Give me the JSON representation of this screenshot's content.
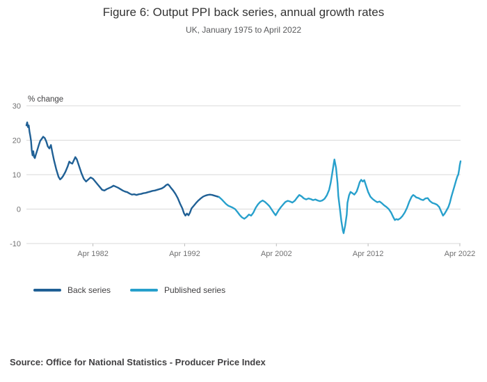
{
  "chart_data": {
    "type": "line",
    "title": "Figure 6: Output PPI back series, annual growth rates",
    "subtitle": "UK, January 1975 to April 2022",
    "ylabel": "% change",
    "xlim": [
      1975.0,
      2022.33
    ],
    "ylim": [
      -10,
      30
    ],
    "yticks": [
      30,
      20,
      10,
      0,
      -10
    ],
    "xticks": [
      {
        "label": "Apr 1982",
        "x": 1982.25
      },
      {
        "label": "Apr 1992",
        "x": 1992.25
      },
      {
        "label": "Apr 2002",
        "x": 2002.25
      },
      {
        "label": "Apr 2012",
        "x": 2012.25
      },
      {
        "label": "Apr 2022",
        "x": 2022.25
      }
    ],
    "grid": "horizontal",
    "legend_position": "bottom",
    "grid_color": "#d9d9d9",
    "axis_text_color": "#707071",
    "series": [
      {
        "name": "Back series",
        "color": "#206095",
        "points": [
          [
            1975.0,
            24.3
          ],
          [
            1975.08,
            25.2
          ],
          [
            1975.17,
            23.8
          ],
          [
            1975.25,
            24.3
          ],
          [
            1975.33,
            22.5
          ],
          [
            1975.42,
            21.3
          ],
          [
            1975.5,
            19.8
          ],
          [
            1975.58,
            17.2
          ],
          [
            1975.67,
            15.6
          ],
          [
            1975.75,
            16.8
          ],
          [
            1975.83,
            15.2
          ],
          [
            1975.92,
            14.8
          ],
          [
            1976.0,
            15.6
          ],
          [
            1976.17,
            17.0
          ],
          [
            1976.33,
            18.4
          ],
          [
            1976.5,
            19.8
          ],
          [
            1976.67,
            20.4
          ],
          [
            1976.83,
            21.0
          ],
          [
            1977.0,
            20.6
          ],
          [
            1977.17,
            19.6
          ],
          [
            1977.33,
            18.2
          ],
          [
            1977.5,
            17.6
          ],
          [
            1977.67,
            18.6
          ],
          [
            1977.83,
            16.4
          ],
          [
            1978.0,
            14.2
          ],
          [
            1978.25,
            11.6
          ],
          [
            1978.5,
            9.4
          ],
          [
            1978.67,
            8.6
          ],
          [
            1978.83,
            9.0
          ],
          [
            1979.0,
            9.6
          ],
          [
            1979.25,
            10.8
          ],
          [
            1979.5,
            12.4
          ],
          [
            1979.67,
            13.8
          ],
          [
            1979.83,
            13.4
          ],
          [
            1980.0,
            13.2
          ],
          [
            1980.17,
            14.2
          ],
          [
            1980.33,
            15.1
          ],
          [
            1980.5,
            14.4
          ],
          [
            1980.75,
            12.4
          ],
          [
            1981.0,
            10.4
          ],
          [
            1981.25,
            8.8
          ],
          [
            1981.5,
            8.0
          ],
          [
            1981.75,
            8.6
          ],
          [
            1982.0,
            9.2
          ],
          [
            1982.25,
            8.8
          ],
          [
            1982.5,
            8.0
          ],
          [
            1982.75,
            7.2
          ],
          [
            1983.0,
            6.4
          ],
          [
            1983.25,
            5.6
          ],
          [
            1983.5,
            5.4
          ],
          [
            1983.75,
            5.8
          ],
          [
            1984.0,
            6.1
          ],
          [
            1984.25,
            6.4
          ],
          [
            1984.5,
            6.8
          ],
          [
            1984.75,
            6.5
          ],
          [
            1985.0,
            6.2
          ],
          [
            1985.25,
            5.8
          ],
          [
            1985.5,
            5.4
          ],
          [
            1985.75,
            5.1
          ],
          [
            1986.0,
            4.9
          ],
          [
            1986.25,
            4.5
          ],
          [
            1986.5,
            4.2
          ],
          [
            1986.75,
            4.3
          ],
          [
            1987.0,
            4.1
          ],
          [
            1987.25,
            4.3
          ],
          [
            1987.5,
            4.4
          ],
          [
            1987.75,
            4.6
          ],
          [
            1988.0,
            4.7
          ],
          [
            1988.25,
            4.9
          ],
          [
            1988.5,
            5.1
          ],
          [
            1988.75,
            5.3
          ],
          [
            1989.0,
            5.4
          ],
          [
            1989.25,
            5.6
          ],
          [
            1989.5,
            5.8
          ],
          [
            1989.75,
            6.0
          ],
          [
            1990.0,
            6.4
          ],
          [
            1990.25,
            7.0
          ],
          [
            1990.42,
            7.2
          ],
          [
            1990.58,
            6.8
          ],
          [
            1990.75,
            6.2
          ],
          [
            1991.0,
            5.4
          ],
          [
            1991.25,
            4.4
          ],
          [
            1991.5,
            3.2
          ],
          [
            1991.75,
            1.6
          ],
          [
            1992.0,
            0.2
          ],
          [
            1992.17,
            -1.2
          ],
          [
            1992.33,
            -1.9
          ],
          [
            1992.5,
            -1.3
          ],
          [
            1992.67,
            -1.8
          ],
          [
            1992.83,
            -1.0
          ],
          [
            1993.0,
            0.2
          ],
          [
            1993.25,
            1.0
          ],
          [
            1993.5,
            1.8
          ],
          [
            1993.75,
            2.5
          ],
          [
            1994.0,
            3.1
          ],
          [
            1994.25,
            3.6
          ],
          [
            1994.5,
            3.9
          ],
          [
            1994.75,
            4.1
          ],
          [
            1995.0,
            4.2
          ],
          [
            1995.25,
            4.1
          ],
          [
            1995.5,
            3.9
          ],
          [
            1995.75,
            3.7
          ],
          [
            1996.0,
            3.5
          ]
        ]
      },
      {
        "name": "Published series",
        "color": "#27a0cc",
        "points": [
          [
            1996.0,
            3.5
          ],
          [
            1996.25,
            2.9
          ],
          [
            1996.5,
            2.2
          ],
          [
            1996.75,
            1.5
          ],
          [
            1997.0,
            1.0
          ],
          [
            1997.25,
            0.7
          ],
          [
            1997.5,
            0.4
          ],
          [
            1997.75,
            0.0
          ],
          [
            1998.0,
            -0.8
          ],
          [
            1998.25,
            -1.7
          ],
          [
            1998.5,
            -2.4
          ],
          [
            1998.75,
            -2.8
          ],
          [
            1999.0,
            -2.3
          ],
          [
            1999.25,
            -1.6
          ],
          [
            1999.5,
            -1.9
          ],
          [
            1999.75,
            -1.0
          ],
          [
            2000.0,
            0.4
          ],
          [
            2000.25,
            1.4
          ],
          [
            2000.5,
            2.1
          ],
          [
            2000.75,
            2.5
          ],
          [
            2001.0,
            2.1
          ],
          [
            2001.25,
            1.5
          ],
          [
            2001.5,
            0.8
          ],
          [
            2001.75,
            -0.2
          ],
          [
            2002.0,
            -1.2
          ],
          [
            2002.17,
            -1.8
          ],
          [
            2002.33,
            -1.1
          ],
          [
            2002.5,
            -0.3
          ],
          [
            2002.75,
            0.6
          ],
          [
            2003.0,
            1.4
          ],
          [
            2003.25,
            2.1
          ],
          [
            2003.5,
            2.4
          ],
          [
            2003.75,
            2.2
          ],
          [
            2004.0,
            1.9
          ],
          [
            2004.25,
            2.4
          ],
          [
            2004.5,
            3.3
          ],
          [
            2004.75,
            4.1
          ],
          [
            2005.0,
            3.7
          ],
          [
            2005.25,
            3.1
          ],
          [
            2005.5,
            2.8
          ],
          [
            2005.75,
            3.1
          ],
          [
            2006.0,
            2.9
          ],
          [
            2006.25,
            2.6
          ],
          [
            2006.5,
            2.8
          ],
          [
            2006.75,
            2.5
          ],
          [
            2007.0,
            2.3
          ],
          [
            2007.25,
            2.5
          ],
          [
            2007.5,
            3.0
          ],
          [
            2007.75,
            4.0
          ],
          [
            2008.0,
            5.6
          ],
          [
            2008.17,
            7.6
          ],
          [
            2008.33,
            10.2
          ],
          [
            2008.5,
            13.2
          ],
          [
            2008.58,
            14.4
          ],
          [
            2008.75,
            12.0
          ],
          [
            2008.92,
            7.5
          ],
          [
            2009.0,
            3.8
          ],
          [
            2009.17,
            0.2
          ],
          [
            2009.33,
            -3.4
          ],
          [
            2009.5,
            -6.2
          ],
          [
            2009.58,
            -7.0
          ],
          [
            2009.75,
            -4.8
          ],
          [
            2009.92,
            -1.6
          ],
          [
            2010.0,
            1.8
          ],
          [
            2010.17,
            4.0
          ],
          [
            2010.33,
            5.0
          ],
          [
            2010.5,
            4.7
          ],
          [
            2010.75,
            4.2
          ],
          [
            2011.0,
            5.1
          ],
          [
            2011.17,
            6.4
          ],
          [
            2011.33,
            7.8
          ],
          [
            2011.5,
            8.5
          ],
          [
            2011.67,
            8.0
          ],
          [
            2011.83,
            8.4
          ],
          [
            2012.0,
            7.0
          ],
          [
            2012.25,
            5.0
          ],
          [
            2012.5,
            3.6
          ],
          [
            2012.75,
            2.9
          ],
          [
            2013.0,
            2.4
          ],
          [
            2013.25,
            2.0
          ],
          [
            2013.5,
            2.2
          ],
          [
            2013.75,
            1.7
          ],
          [
            2014.0,
            1.1
          ],
          [
            2014.25,
            0.6
          ],
          [
            2014.5,
            0.0
          ],
          [
            2014.75,
            -1.0
          ],
          [
            2015.0,
            -2.4
          ],
          [
            2015.17,
            -3.2
          ],
          [
            2015.33,
            -2.9
          ],
          [
            2015.5,
            -3.1
          ],
          [
            2015.75,
            -2.7
          ],
          [
            2016.0,
            -2.0
          ],
          [
            2016.25,
            -1.0
          ],
          [
            2016.5,
            0.4
          ],
          [
            2016.75,
            2.2
          ],
          [
            2017.0,
            3.6
          ],
          [
            2017.17,
            4.1
          ],
          [
            2017.33,
            3.8
          ],
          [
            2017.5,
            3.4
          ],
          [
            2017.75,
            3.2
          ],
          [
            2018.0,
            2.8
          ],
          [
            2018.25,
            2.6
          ],
          [
            2018.5,
            3.1
          ],
          [
            2018.75,
            3.2
          ],
          [
            2019.0,
            2.3
          ],
          [
            2019.25,
            1.8
          ],
          [
            2019.5,
            1.6
          ],
          [
            2019.75,
            1.3
          ],
          [
            2020.0,
            0.6
          ],
          [
            2020.25,
            -0.9
          ],
          [
            2020.42,
            -1.9
          ],
          [
            2020.58,
            -1.4
          ],
          [
            2020.75,
            -0.6
          ],
          [
            2021.0,
            0.6
          ],
          [
            2021.17,
            1.9
          ],
          [
            2021.33,
            3.6
          ],
          [
            2021.5,
            5.2
          ],
          [
            2021.67,
            6.7
          ],
          [
            2021.83,
            8.2
          ],
          [
            2022.0,
            9.6
          ],
          [
            2022.08,
            10.0
          ],
          [
            2022.17,
            11.4
          ],
          [
            2022.25,
            12.8
          ],
          [
            2022.33,
            13.9
          ]
        ]
      }
    ]
  },
  "source": "Source: Office for National Statistics - Producer Price Index"
}
